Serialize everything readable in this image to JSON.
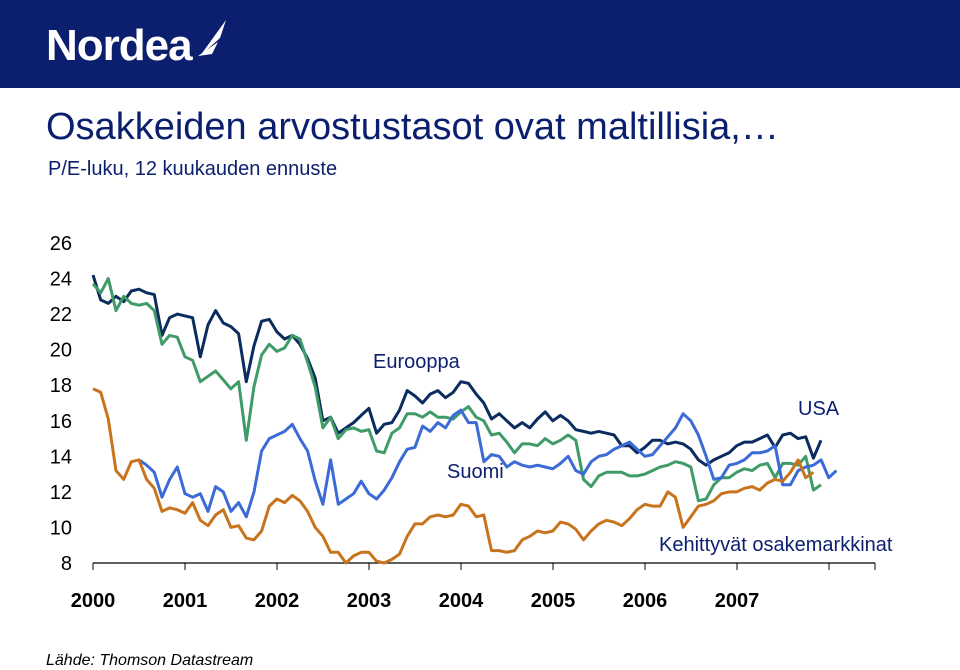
{
  "brand": {
    "name": "Nordea",
    "color": "#0b1f6e"
  },
  "slide": {
    "title": "Osakkeiden arvostustasot ovat maltillisia,…",
    "subtitle": "P/E-luku, 12 kuukauden ennuste",
    "source": "Lähde: Thomson Datastream"
  },
  "chart_data": {
    "type": "line",
    "title": "",
    "xlabel": "",
    "ylabel": "",
    "ylim": [
      8,
      26
    ],
    "yticks": [
      8,
      10,
      12,
      14,
      16,
      18,
      20,
      22,
      24,
      26
    ],
    "xlim": [
      2000,
      2008.5
    ],
    "xticks": [
      "2000",
      "2001",
      "2002",
      "2003",
      "2004",
      "2005",
      "2006",
      "2007"
    ],
    "grid": false,
    "legend": "none (series labelled inline)",
    "series": [
      {
        "name": "USA",
        "color": "#0b2c5f",
        "x_start": 2000.0,
        "x_step": 0.0833,
        "values": [
          24.2,
          22.8,
          22.6,
          23.0,
          22.7,
          23.3,
          23.4,
          23.2,
          23.1,
          20.8,
          21.8,
          22.0,
          21.9,
          21.8,
          19.6,
          21.4,
          22.2,
          21.5,
          21.3,
          20.9,
          18.2,
          20.2,
          21.6,
          21.7,
          21.0,
          20.6,
          20.8,
          20.3,
          19.5,
          18.4,
          16.0,
          16.2,
          15.3,
          15.6,
          15.9,
          16.3,
          16.7,
          15.3,
          15.8,
          15.9,
          16.6,
          17.7,
          17.4,
          17.0,
          17.5,
          17.7,
          17.3,
          17.6,
          18.2,
          18.1,
          17.5,
          17.0,
          16.1,
          16.4,
          16.0,
          15.6,
          15.9,
          15.6,
          16.1,
          16.5,
          16.0,
          16.3,
          16.0,
          15.5,
          15.4,
          15.3,
          15.4,
          15.3,
          15.2,
          14.6,
          14.6,
          14.2,
          14.5,
          14.9,
          14.9,
          14.7,
          14.8,
          14.7,
          14.4,
          13.8,
          13.5,
          13.8,
          14.0,
          14.2,
          14.6,
          14.8,
          14.8,
          15.0,
          15.2,
          14.5,
          15.2,
          15.3,
          15.0,
          15.1,
          13.9,
          14.9
        ]
      },
      {
        "name": "Eurooppa",
        "color": "#3f9b67",
        "x_start": 2000.0,
        "x_step": 0.0833,
        "values": [
          23.7,
          23.2,
          24.0,
          22.2,
          23.0,
          22.6,
          22.5,
          22.6,
          22.2,
          20.3,
          20.8,
          20.7,
          19.6,
          19.4,
          18.2,
          18.5,
          18.8,
          18.3,
          17.8,
          18.2,
          14.9,
          17.9,
          19.7,
          20.3,
          19.9,
          20.1,
          20.8,
          20.6,
          19.3,
          17.9,
          15.6,
          16.2,
          15.0,
          15.5,
          15.6,
          15.4,
          15.5,
          14.3,
          14.2,
          15.3,
          15.6,
          16.4,
          16.4,
          16.2,
          16.5,
          16.2,
          16.2,
          16.1,
          16.5,
          16.8,
          16.2,
          16.0,
          15.2,
          15.3,
          14.8,
          14.2,
          14.7,
          14.7,
          14.6,
          15.0,
          14.7,
          14.9,
          15.2,
          14.9,
          12.7,
          12.3,
          12.9,
          13.1,
          13.1,
          13.1,
          12.9,
          12.9,
          13.0,
          13.2,
          13.4,
          13.5,
          13.7,
          13.6,
          13.4,
          11.5,
          11.6,
          12.4,
          12.8,
          12.8,
          13.1,
          13.3,
          13.2,
          13.5,
          13.6,
          12.8,
          13.6,
          13.6,
          13.5,
          14.0,
          12.1,
          12.4
        ]
      },
      {
        "name": "Suomi",
        "color": "#3c6ad6",
        "x_start": 2004.0,
        "x_step": 0.0833,
        "values": [
          13.8,
          13.5,
          13.1,
          11.7,
          12.7,
          13.4,
          11.9,
          11.7,
          11.9,
          10.9,
          12.3,
          12.0,
          10.9,
          11.4,
          10.6,
          12.0,
          14.3,
          15.0,
          15.2,
          15.4,
          15.8,
          15.0,
          14.3,
          12.6,
          11.3,
          13.8,
          11.3,
          11.6,
          11.9,
          12.6,
          11.9,
          11.6,
          12.1,
          12.8,
          13.7,
          14.4,
          14.5,
          15.7,
          15.4,
          15.9,
          15.6,
          16.3,
          16.6,
          15.9,
          15.9,
          13.7,
          14.1,
          14.0,
          13.4,
          13.7,
          13.5,
          13.4,
          13.5,
          13.4,
          13.3,
          13.6,
          14.0,
          13.2,
          13.0,
          13.7,
          14.0,
          14.1,
          14.4,
          14.6,
          14.8,
          14.4,
          14.0,
          14.1,
          14.6,
          15.1,
          15.6,
          16.4,
          16.0,
          15.2,
          14.0,
          12.7,
          12.8,
          13.5,
          13.6,
          13.8,
          14.2,
          14.2,
          14.3,
          14.6,
          12.4,
          12.4,
          13.2,
          13.4,
          13.5,
          13.8,
          12.8,
          13.2
        ],
        "note_visible_from_x": 2000.5
      },
      {
        "name": "Kehittyvät osakemarkkinat",
        "color": "#c8731e",
        "x_start": 2000.0,
        "x_step": 0.0833,
        "values": [
          17.8,
          17.6,
          16.1,
          13.2,
          12.7,
          13.7,
          13.8,
          12.7,
          12.2,
          10.9,
          11.1,
          11.0,
          10.8,
          11.4,
          10.4,
          10.1,
          10.7,
          11.0,
          10.0,
          10.1,
          9.4,
          9.3,
          9.8,
          11.2,
          11.6,
          11.4,
          11.8,
          11.5,
          10.9,
          10.0,
          9.5,
          8.6,
          8.6,
          8.0,
          8.4,
          8.6,
          8.6,
          8.1,
          8.0,
          8.2,
          8.5,
          9.5,
          10.2,
          10.2,
          10.6,
          10.7,
          10.6,
          10.7,
          11.3,
          11.2,
          10.6,
          10.7,
          8.7,
          8.7,
          8.6,
          8.7,
          9.3,
          9.5,
          9.8,
          9.7,
          9.8,
          10.3,
          10.2,
          9.9,
          9.3,
          9.8,
          10.2,
          10.4,
          10.3,
          10.1,
          10.5,
          11.0,
          11.3,
          11.2,
          11.2,
          12.0,
          11.7,
          10.0,
          10.6,
          11.2,
          11.3,
          11.5,
          11.9,
          12.0,
          12.0,
          12.2,
          12.3,
          12.1,
          12.5,
          12.7,
          12.6,
          13.1,
          13.8,
          12.8,
          13.1
        ]
      }
    ],
    "annotations": [
      {
        "text": "Eurooppa",
        "for": "Eurooppa"
      },
      {
        "text": "Suomi",
        "for": "Suomi"
      },
      {
        "text": "USA",
        "for": "USA"
      },
      {
        "text": "Kehittyvät osakemarkkinat",
        "for": "Kehittyvät osakemarkkinat"
      }
    ]
  }
}
